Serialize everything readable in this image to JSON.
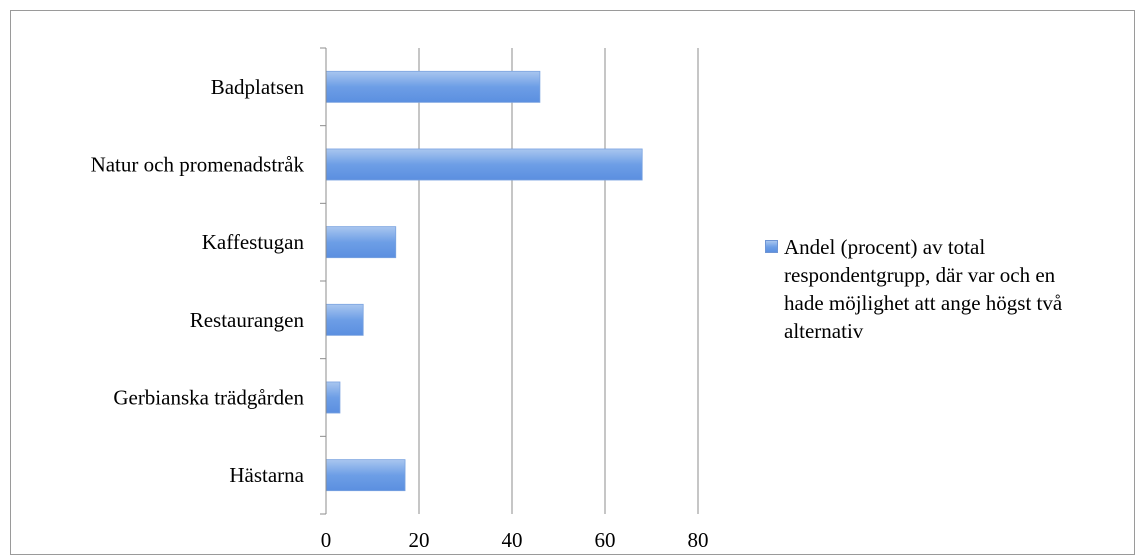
{
  "chart_data": {
    "type": "bar",
    "orientation": "horizontal",
    "categories": [
      "Badplatsen",
      "Natur och promenadstråk",
      "Kaffestugan",
      "Restaurangen",
      "Gerbianska trädgården",
      "Hästarna"
    ],
    "series": [
      {
        "name": "Andel (procent) av total respondentgrupp, där var och en hade möjlighet att ange högst två alternativ",
        "values": [
          46,
          68,
          15,
          8,
          3,
          17
        ]
      }
    ],
    "xlim": [
      0,
      80
    ],
    "x_ticks": [
      "0",
      "20",
      "40",
      "60",
      "80"
    ],
    "grid": "vertical",
    "legend_position": "right",
    "bar_color": "#6d9ee6",
    "title": "",
    "xlabel": "",
    "ylabel": ""
  }
}
